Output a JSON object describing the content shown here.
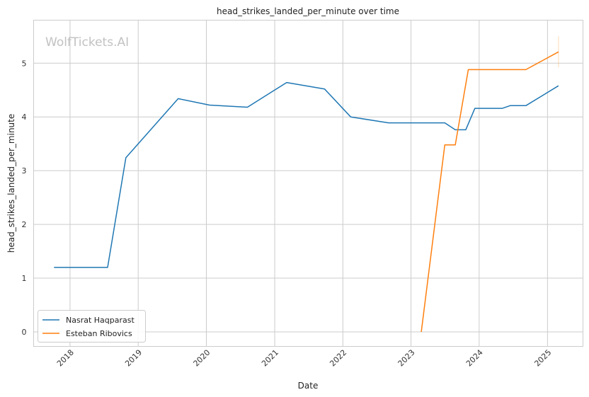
{
  "chart_data": {
    "type": "line",
    "title": "head_strikes_landed_per_minute over time",
    "xlabel": "Date",
    "ylabel": "head_strikes_landed_per_minute",
    "watermark": "WolfTickets.AI",
    "x_ticks": [
      "2018",
      "2019",
      "2020",
      "2021",
      "2022",
      "2023",
      "2024",
      "2025"
    ],
    "y_ticks": [
      "0",
      "1",
      "2",
      "3",
      "4",
      "5"
    ],
    "xlim": [
      "2017-06-20",
      "2025-07-10"
    ],
    "ylim": [
      -0.27,
      5.8
    ],
    "grid": true,
    "legend": "lower-left",
    "series": [
      {
        "name": "Nasrat Haqparast",
        "color": "#1f77b4",
        "x": [
          "2017-10-07",
          "2018-07-21",
          "2018-10-27",
          "2019-08-03",
          "2020-01-18",
          "2020-08-08",
          "2021-03-06",
          "2021-09-25",
          "2022-02-12",
          "2022-09-03",
          "2023-07-01",
          "2023-08-26",
          "2023-10-21",
          "2023-12-09",
          "2024-05-04",
          "2024-06-15",
          "2024-09-07",
          "2025-03-01"
        ],
        "values": [
          1.2,
          1.2,
          3.24,
          4.34,
          4.22,
          4.18,
          4.64,
          4.52,
          4.0,
          3.89,
          3.89,
          3.76,
          3.76,
          4.16,
          4.16,
          4.21,
          4.21,
          4.58
        ]
      },
      {
        "name": "Esteban Ribovics",
        "color": "#ff7f0e",
        "x": [
          "2023-02-25",
          "2023-07-01",
          "2023-08-26",
          "2023-11-04",
          "2024-09-07",
          "2025-03-01"
        ],
        "values": [
          0.0,
          3.48,
          3.48,
          4.88,
          4.88,
          5.21
        ]
      }
    ]
  }
}
